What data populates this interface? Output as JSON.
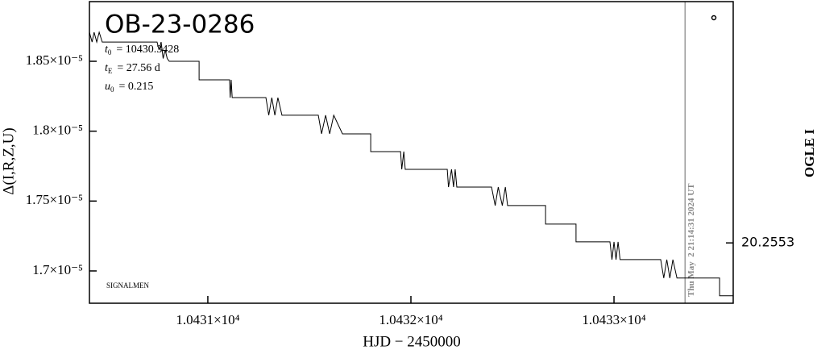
{
  "chart_data": {
    "type": "line",
    "title": "OB-23-0286",
    "parameters": [
      {
        "symbol": "t",
        "subscript": "0",
        "text": "= 10430.3428"
      },
      {
        "symbol": "t",
        "subscript": "E",
        "text": "= 27.56 d"
      },
      {
        "symbol": "u",
        "subscript": "0",
        "text": "= 0.215"
      }
    ],
    "credit": "SIGNALMEN",
    "x_label": "HJD − 2450000",
    "y_label": "Δ(I,R,Z,U)",
    "y2_label": "OGLE I",
    "now_line": {
      "x": 10433.35,
      "label": "Thu May  2 21:14:31 2024 UT"
    },
    "xlim": [
      10430.417,
      10433.587
    ],
    "xticks": [
      {
        "value": 10431,
        "label": "1.0431×10⁴"
      },
      {
        "value": 10432,
        "label": "1.0432×10⁴"
      },
      {
        "value": 10433,
        "label": "1.0433×10⁴"
      }
    ],
    "ylim": [
      1.6769e-05,
      1.8927e-05
    ],
    "yticks": [
      {
        "value": 1.7e-05,
        "label": "1.7×10⁻⁵"
      },
      {
        "value": 1.75e-05,
        "label": "1.75×10⁻⁵"
      },
      {
        "value": 1.8e-05,
        "label": "1.8×10⁻⁵"
      },
      {
        "value": 1.85e-05,
        "label": "1.85×10⁻⁵"
      }
    ],
    "y2lim": [
      20.255,
      20.2565
    ],
    "y2ticks": [
      20.2553
    ],
    "series": [
      {
        "color": "#000000",
        "x": [
          10430.417,
          10430.43,
          10430.44,
          10430.453,
          10430.465,
          10430.48,
          10430.492,
          10430.75,
          10430.76,
          10430.77,
          10430.78,
          10430.79,
          10430.8,
          10430.81,
          10430.957,
          10430.957,
          10431.107,
          10431.11,
          10431.115,
          10431.12,
          10431.286,
          10431.3,
          10431.315,
          10431.33,
          10431.345,
          10431.365,
          10431.425,
          10431.544,
          10431.56,
          10431.58,
          10431.6,
          10431.62,
          10431.663,
          10431.802,
          10431.802,
          10431.949,
          10431.955,
          10431.965,
          10431.972,
          10432.179,
          10432.185,
          10432.2,
          10432.21,
          10432.218,
          10432.226,
          10432.397,
          10432.415,
          10432.43,
          10432.45,
          10432.465,
          10432.476,
          10432.663,
          10432.663,
          10432.813,
          10432.813,
          10432.98,
          10432.99,
          10433.0,
          10433.01,
          10433.02,
          10433.03,
          10433.23,
          10433.245,
          10433.26,
          10433.275,
          10433.29,
          10433.31,
          10433.52,
          10433.52,
          10433.587
        ],
        "values": [
          1.8708e-05,
          1.8638e-05,
          1.8708e-05,
          1.8638e-05,
          1.8708e-05,
          1.8638e-05,
          1.8638e-05,
          1.8638e-05,
          1.8581e-05,
          1.8638e-05,
          1.852e-05,
          1.8581e-05,
          1.852e-05,
          1.85e-05,
          1.85e-05,
          1.8367e-05,
          1.8367e-05,
          1.824e-05,
          1.8367e-05,
          1.824e-05,
          1.824e-05,
          1.8114e-05,
          1.824e-05,
          1.8114e-05,
          1.824e-05,
          1.8114e-05,
          1.8114e-05,
          1.8114e-05,
          1.7981e-05,
          1.8114e-05,
          1.7981e-05,
          1.8114e-05,
          1.7981e-05,
          1.7981e-05,
          1.7854e-05,
          1.7854e-05,
          1.7727e-05,
          1.7854e-05,
          1.7727e-05,
          1.7727e-05,
          1.76e-05,
          1.7727e-05,
          1.76e-05,
          1.7727e-05,
          1.76e-05,
          1.76e-05,
          1.7468e-05,
          1.76e-05,
          1.7468e-05,
          1.76e-05,
          1.7468e-05,
          1.7468e-05,
          1.7335e-05,
          1.7335e-05,
          1.7208e-05,
          1.7208e-05,
          1.7081e-05,
          1.7208e-05,
          1.7081e-05,
          1.7208e-05,
          1.7081e-05,
          1.7081e-05,
          1.6949e-05,
          1.7081e-05,
          1.6949e-05,
          1.7081e-05,
          1.6949e-05,
          1.6949e-05,
          1.6822e-05,
          1.6822e-05
        ]
      }
    ]
  }
}
